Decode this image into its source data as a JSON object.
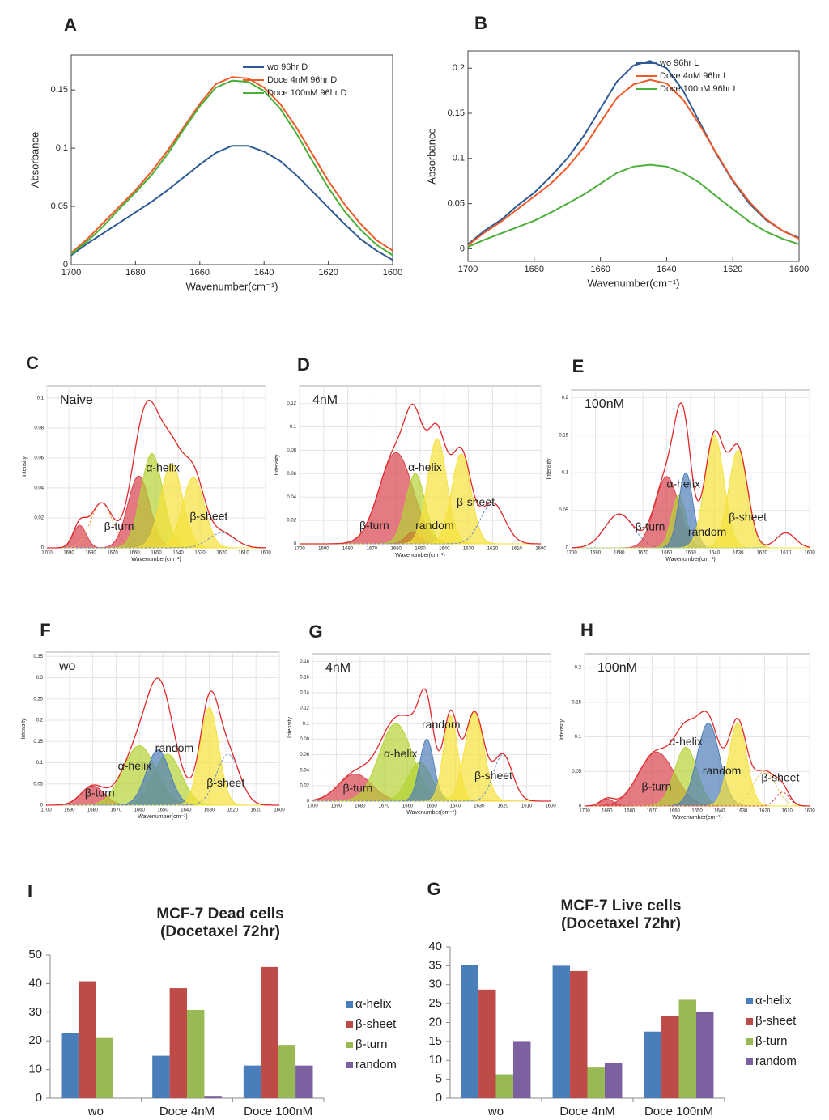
{
  "chart_data": [
    {
      "type": "line",
      "panel": "A",
      "xlabel": "Wavenumber(cm⁻¹)",
      "ylabel": "Absorbance",
      "x": [
        1700,
        1695,
        1690,
        1685,
        1680,
        1675,
        1670,
        1665,
        1660,
        1655,
        1650,
        1645,
        1640,
        1635,
        1630,
        1625,
        1620,
        1615,
        1610,
        1605,
        1600
      ],
      "series": [
        {
          "name": "wo 96hr D",
          "color": "#2e5b94",
          "values": [
            0.008,
            0.018,
            0.027,
            0.036,
            0.045,
            0.054,
            0.064,
            0.075,
            0.086,
            0.096,
            0.102,
            0.102,
            0.097,
            0.089,
            0.077,
            0.063,
            0.049,
            0.035,
            0.022,
            0.012,
            0.004
          ]
        },
        {
          "name": "Doce 4nM 96hr D",
          "color": "#f05a28",
          "values": [
            0.01,
            0.022,
            0.036,
            0.05,
            0.064,
            0.08,
            0.098,
            0.118,
            0.138,
            0.155,
            0.161,
            0.16,
            0.152,
            0.138,
            0.118,
            0.095,
            0.072,
            0.052,
            0.035,
            0.021,
            0.012
          ]
        },
        {
          "name": "Doce 100nM 96hr D",
          "color": "#4caf3a",
          "values": [
            0.009,
            0.02,
            0.033,
            0.048,
            0.062,
            0.077,
            0.095,
            0.116,
            0.136,
            0.152,
            0.158,
            0.157,
            0.149,
            0.134,
            0.113,
            0.089,
            0.066,
            0.046,
            0.03,
            0.017,
            0.008
          ]
        }
      ],
      "xlim": [
        1700,
        1600
      ],
      "xticks": [
        1700,
        1680,
        1660,
        1640,
        1620,
        1600
      ],
      "ylim": [
        0,
        0.18
      ],
      "yticks": [
        0,
        0.05,
        0.1,
        0.15
      ]
    },
    {
      "type": "line",
      "panel": "B",
      "xlabel": "Wavenumber(cm⁻¹)",
      "ylabel": "Absorbance",
      "x": [
        1700,
        1695,
        1690,
        1685,
        1680,
        1675,
        1670,
        1665,
        1660,
        1655,
        1650,
        1645,
        1640,
        1635,
        1630,
        1625,
        1620,
        1615,
        1610,
        1605,
        1600
      ],
      "series": [
        {
          "name": "wo 96hr L",
          "color": "#2e5b94",
          "values": [
            0.005,
            0.02,
            0.032,
            0.048,
            0.062,
            0.08,
            0.1,
            0.125,
            0.155,
            0.185,
            0.203,
            0.208,
            0.2,
            0.175,
            0.14,
            0.105,
            0.075,
            0.05,
            0.032,
            0.02,
            0.012
          ]
        },
        {
          "name": "Doce 4nM 96hr L",
          "color": "#f05a28",
          "values": [
            0.004,
            0.018,
            0.03,
            0.044,
            0.058,
            0.072,
            0.09,
            0.112,
            0.14,
            0.167,
            0.182,
            0.187,
            0.183,
            0.165,
            0.137,
            0.106,
            0.076,
            0.052,
            0.033,
            0.02,
            0.011
          ]
        },
        {
          "name": "Doce 100nM 96hr L",
          "color": "#4caf3a",
          "values": [
            0.002,
            0.01,
            0.017,
            0.024,
            0.031,
            0.04,
            0.05,
            0.06,
            0.072,
            0.084,
            0.091,
            0.093,
            0.091,
            0.084,
            0.073,
            0.058,
            0.044,
            0.03,
            0.019,
            0.011,
            0.005
          ]
        }
      ],
      "xlim": [
        1700,
        1600
      ],
      "xticks": [
        1700,
        1680,
        1660,
        1640,
        1620,
        1600
      ],
      "ylim": [
        -0.014,
        0.219
      ],
      "yticks": [
        0,
        0.05,
        0.1,
        0.15,
        0.2
      ]
    },
    {
      "type": "peaks",
      "panel": "C",
      "label": "Naive",
      "xlabel": "Wavenumber(cm⁻¹)",
      "ylabel": "Intensity",
      "envelope_color": "#e02828",
      "peaks": [
        {
          "color": "#d9434f",
          "center": 1685,
          "height": 0.015,
          "width": 3
        },
        {
          "color": "#e8a050",
          "center": 1675,
          "height": 0.03,
          "width": 5,
          "dashed": true
        },
        {
          "color": "#d9434f",
          "center": 1658,
          "height": 0.048,
          "width": 5
        },
        {
          "color": "#b5d334",
          "center": 1652,
          "height": 0.063,
          "width": 5
        },
        {
          "color": "#f5e13a",
          "center": 1643,
          "height": 0.056,
          "width": 5
        },
        {
          "color": "#f5e13a",
          "center": 1633,
          "height": 0.047,
          "width": 5
        },
        {
          "color": "#6b8fc8",
          "center": 1620,
          "height": 0.01,
          "width": 6,
          "dashed": true
        }
      ],
      "annotations": [
        {
          "text": "α-helix",
          "x": 1647,
          "y": 0.053
        },
        {
          "text": "β-turn",
          "x": 1667,
          "y": 0.014
        },
        {
          "text": "β-sheet",
          "x": 1626,
          "y": 0.0205
        }
      ],
      "xlim": [
        1700,
        1600
      ],
      "xticks": [
        1700,
        1690,
        1680,
        1670,
        1660,
        1650,
        1640,
        1630,
        1620,
        1610,
        1600
      ],
      "ylim": [
        0,
        0.108
      ],
      "yticks": [
        0,
        0.02,
        0.04,
        0.06,
        0.08,
        0.1
      ]
    },
    {
      "type": "peaks",
      "panel": "D",
      "label": "4nM",
      "xlabel": "Wavenumber(cm⁻¹)",
      "ylabel": "Intensity",
      "envelope_color": "#e02828",
      "peaks": [
        {
          "color": "#d9434f",
          "center": 1660,
          "height": 0.078,
          "width": 7
        },
        {
          "color": "#b5d334",
          "center": 1652,
          "height": 0.06,
          "width": 4
        },
        {
          "color": "#c87a30",
          "center": 1653,
          "height": 0.01,
          "width": 3
        },
        {
          "color": "#f5e13a",
          "center": 1643,
          "height": 0.09,
          "width": 4
        },
        {
          "color": "#f5e13a",
          "center": 1633,
          "height": 0.077,
          "width": 4
        },
        {
          "color": "#6b8fc8",
          "center": 1620,
          "height": 0.035,
          "width": 5,
          "dashed": true
        }
      ],
      "annotations": [
        {
          "text": "α-helix",
          "x": 1648,
          "y": 0.065
        },
        {
          "text": "β-sheet",
          "x": 1627,
          "y": 0.035
        },
        {
          "text": "β-turn",
          "x": 1669,
          "y": 0.015
        },
        {
          "text": "random",
          "x": 1644,
          "y": 0.015
        }
      ],
      "xlim": [
        1700,
        1600
      ],
      "xticks": [
        1700,
        1690,
        1680,
        1670,
        1660,
        1650,
        1640,
        1630,
        1620,
        1610,
        1600
      ],
      "ylim": [
        0,
        0.135
      ],
      "yticks": [
        0,
        0.02,
        0.04,
        0.06,
        0.08,
        0.1,
        0.12
      ]
    },
    {
      "type": "peaks",
      "panel": "E",
      "label": "100nM",
      "xlabel": "Wavenumber(cm⁻¹)",
      "ylabel": "Intensity",
      "envelope_color": "#e02828",
      "peaks": [
        {
          "color": "#6b8fc8",
          "center": 1680,
          "height": 0.045,
          "width": 6,
          "dashed": true
        },
        {
          "color": "#d9434f",
          "center": 1660,
          "height": 0.095,
          "width": 5
        },
        {
          "color": "#b5d334",
          "center": 1655,
          "height": 0.07,
          "width": 3
        },
        {
          "color": "#4f7fb8",
          "center": 1652,
          "height": 0.1,
          "width": 3
        },
        {
          "color": "#f5e13a",
          "center": 1640,
          "height": 0.15,
          "width": 4
        },
        {
          "color": "#f5e13a",
          "center": 1630,
          "height": 0.13,
          "width": 4
        },
        {
          "color": "#8cc8a0",
          "center": 1610,
          "height": 0.02,
          "width": 4,
          "dashed": true
        }
      ],
      "annotations": [
        {
          "text": "α-helix",
          "x": 1653,
          "y": 0.084
        },
        {
          "text": "β-sheet",
          "x": 1626,
          "y": 0.04
        },
        {
          "text": "β-turn",
          "x": 1667,
          "y": 0.027
        },
        {
          "text": "random",
          "x": 1643,
          "y": 0.02
        }
      ],
      "xlim": [
        1700,
        1600
      ],
      "xticks": [
        1700,
        1690,
        1680,
        1670,
        1660,
        1650,
        1640,
        1630,
        1620,
        1610,
        1600
      ],
      "ylim": [
        0,
        0.21
      ],
      "yticks": [
        0,
        0.05,
        0.1,
        0.15,
        0.2
      ]
    },
    {
      "type": "peaks",
      "panel": "F",
      "label": "wo",
      "xlabel": "Wavenumber(cm⁻¹)",
      "ylabel": "Intensity",
      "envelope_color": "#e02828",
      "peaks": [
        {
          "color": "#d9434f",
          "center": 1680,
          "height": 0.045,
          "width": 5
        },
        {
          "color": "#b5d334",
          "center": 1660,
          "height": 0.14,
          "width": 7
        },
        {
          "color": "#b5d334",
          "center": 1648,
          "height": 0.12,
          "width": 6
        },
        {
          "color": "#4f7fb8",
          "center": 1652,
          "height": 0.13,
          "width": 5
        },
        {
          "color": "#f5e13a",
          "center": 1630,
          "height": 0.23,
          "width": 4
        },
        {
          "color": "#6b8fc8",
          "center": 1622,
          "height": 0.12,
          "width": 5,
          "dashed": true
        }
      ],
      "annotations": [
        {
          "text": "random",
          "x": 1645,
          "y": 0.133
        },
        {
          "text": "α-helix",
          "x": 1662,
          "y": 0.091
        },
        {
          "text": "β-turn",
          "x": 1677,
          "y": 0.027
        },
        {
          "text": "β-sheet",
          "x": 1623,
          "y": 0.051
        }
      ],
      "xlim": [
        1700,
        1600
      ],
      "xticks": [
        1700,
        1690,
        1680,
        1670,
        1660,
        1650,
        1640,
        1630,
        1620,
        1610,
        1600
      ],
      "ylim": [
        0,
        0.36
      ],
      "yticks": [
        0,
        0.05,
        0.1,
        0.15,
        0.2,
        0.25,
        0.3,
        0.35
      ]
    },
    {
      "type": "peaks",
      "panel": "G",
      "label": "4nM",
      "xlabel": "Wavenumber(cm⁻¹)",
      "ylabel": "Intensity",
      "envelope_color": "#e02828",
      "peaks": [
        {
          "color": "#d9434f",
          "center": 1682,
          "height": 0.035,
          "width": 7
        },
        {
          "color": "#b5d334",
          "center": 1665,
          "height": 0.1,
          "width": 7
        },
        {
          "color": "#b5d334",
          "center": 1655,
          "height": 0.05,
          "width": 5
        },
        {
          "color": "#4f7fb8",
          "center": 1652,
          "height": 0.08,
          "width": 3
        },
        {
          "color": "#f5e13a",
          "center": 1642,
          "height": 0.11,
          "width": 3
        },
        {
          "color": "#f5e13a",
          "center": 1632,
          "height": 0.115,
          "width": 4
        },
        {
          "color": "#6b8fc8",
          "center": 1620,
          "height": 0.06,
          "width": 4,
          "dashed": true
        }
      ],
      "annotations": [
        {
          "text": "random",
          "x": 1646,
          "y": 0.098
        },
        {
          "text": "α-helix",
          "x": 1663,
          "y": 0.06
        },
        {
          "text": "β-turn",
          "x": 1681,
          "y": 0.016
        },
        {
          "text": "β-sheet",
          "x": 1624,
          "y": 0.032
        }
      ],
      "xlim": [
        1700,
        1600
      ],
      "xticks": [
        1700,
        1690,
        1680,
        1670,
        1660,
        1650,
        1640,
        1630,
        1620,
        1610,
        1600
      ],
      "ylim": [
        0,
        0.19
      ],
      "yticks": [
        0,
        0.02,
        0.04,
        0.06,
        0.08,
        0.1,
        0.12,
        0.14,
        0.16,
        0.18
      ]
    },
    {
      "type": "peaks",
      "panel": "H",
      "label": "100nM",
      "xlabel": "Wavenumber(cm⁻¹)",
      "ylabel": "Intensity",
      "envelope_color": "#e02828",
      "peaks": [
        {
          "color": "#d9434f",
          "center": 1690,
          "height": 0.01,
          "width": 3
        },
        {
          "color": "#d9434f",
          "center": 1668,
          "height": 0.078,
          "width": 8
        },
        {
          "color": "#b5d334",
          "center": 1655,
          "height": 0.085,
          "width": 5
        },
        {
          "color": "#4f7fb8",
          "center": 1645,
          "height": 0.12,
          "width": 5
        },
        {
          "color": "#f5e13a",
          "center": 1632,
          "height": 0.12,
          "width": 4
        },
        {
          "color": "#e8c850",
          "center": 1620,
          "height": 0.05,
          "width": 5,
          "dashed": true
        },
        {
          "color": "#d9434f",
          "center": 1612,
          "height": 0.02,
          "width": 3,
          "dashed": true
        }
      ],
      "annotations": [
        {
          "text": "α-helix",
          "x": 1655,
          "y": 0.092
        },
        {
          "text": "random",
          "x": 1639,
          "y": 0.05
        },
        {
          "text": "β-turn",
          "x": 1668,
          "y": 0.027
        },
        {
          "text": "β-sheet",
          "x": 1613,
          "y": 0.04
        }
      ],
      "xlim": [
        1700,
        1600
      ],
      "xticks": [
        1700,
        1690,
        1680,
        1670,
        1660,
        1650,
        1640,
        1630,
        1620,
        1610,
        1600
      ],
      "ylim": [
        0,
        0.22
      ],
      "yticks": [
        0,
        0.05,
        0.1,
        0.15,
        0.2
      ]
    },
    {
      "type": "bar",
      "panel": "I",
      "title": "MCF-7 Dead cells",
      "subtitle": "(Docetaxel 72hr)",
      "categories": [
        "wo",
        "Doce 4nM",
        "Doce 100nM"
      ],
      "series": [
        {
          "name": "α-helix",
          "color": "#4a7ebb",
          "values": [
            22.8,
            14.8,
            11.4
          ]
        },
        {
          "name": "β-sheet",
          "color": "#be4b48",
          "values": [
            40.8,
            38.4,
            45.8
          ]
        },
        {
          "name": "β-turn",
          "color": "#98b954",
          "values": [
            21,
            30.8,
            18.6
          ]
        },
        {
          "name": "random",
          "color": "#7d60a0",
          "values": [
            0,
            0.8,
            11.4
          ]
        }
      ],
      "ylim": [
        0,
        50
      ],
      "yticks": [
        0,
        10,
        20,
        30,
        40,
        50
      ]
    },
    {
      "type": "bar",
      "panel": "G",
      "title": "MCF-7 Live cells",
      "subtitle": "(Docetaxel 72hr)",
      "categories": [
        "wo",
        "Doce 4nM",
        "Doce 100nM"
      ],
      "series": [
        {
          "name": "α-helix",
          "color": "#4a7ebb",
          "values": [
            35.3,
            35,
            17.6
          ]
        },
        {
          "name": "β-sheet",
          "color": "#be4b48",
          "values": [
            28.7,
            33.6,
            21.8
          ]
        },
        {
          "name": "β-turn",
          "color": "#98b954",
          "values": [
            6.3,
            8.1,
            26
          ]
        },
        {
          "name": "random",
          "color": "#7d60a0",
          "values": [
            15.1,
            9.4,
            22.9
          ]
        }
      ],
      "ylim": [
        0,
        40
      ],
      "yticks": [
        0,
        5,
        10,
        15,
        20,
        25,
        30,
        35,
        40
      ]
    }
  ]
}
